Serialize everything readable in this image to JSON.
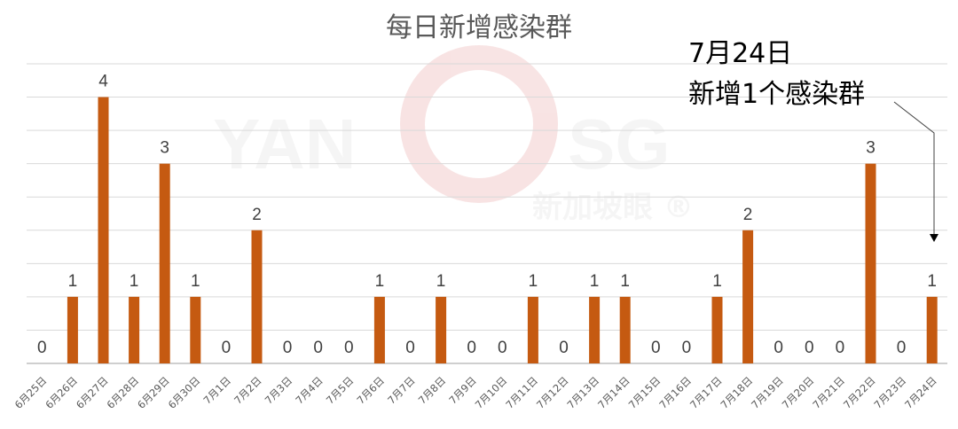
{
  "chart_data": {
    "type": "bar",
    "title": "每日新增感染群",
    "categories": [
      "6月25日",
      "6月26日",
      "6月27日",
      "6月28日",
      "6月29日",
      "6月30日",
      "7月1日",
      "7月2日",
      "7月3日",
      "7月4日",
      "7月5日",
      "7月6日",
      "7月7日",
      "7月8日",
      "7月9日",
      "7月10日",
      "7月11日",
      "7月12日",
      "7月13日",
      "7月14日",
      "7月15日",
      "7月16日",
      "7月17日",
      "7月18日",
      "7月19日",
      "7月20日",
      "7月21日",
      "7月22日",
      "7月23日",
      "7月24日"
    ],
    "values": [
      0,
      1,
      4,
      1,
      3,
      1,
      0,
      2,
      0,
      0,
      0,
      1,
      0,
      1,
      0,
      0,
      1,
      0,
      1,
      1,
      0,
      0,
      1,
      2,
      0,
      0,
      0,
      3,
      0,
      1
    ],
    "xlabel": "",
    "ylabel": "",
    "ylim": [
      0,
      4.5
    ],
    "grid_step": 0.5,
    "grid": true,
    "y_axis_labels": false,
    "data_labels": true,
    "bar_color": "#C55A11",
    "annotation": {
      "line1": "7月24日",
      "line2": "新增1个感染群",
      "target": "7月24日"
    }
  },
  "watermark": {
    "text": "YAN SG",
    "subtext": "新加坡眼 ®",
    "color": "#F2C9C9"
  }
}
